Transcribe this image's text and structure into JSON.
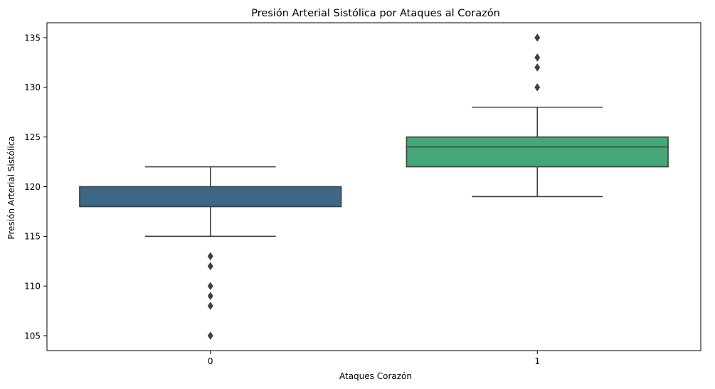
{
  "chart_data": {
    "type": "boxplot",
    "title": "Presión Arterial Sistólica por Ataques al Corazón",
    "xlabel": "Ataques Corazón",
    "ylabel": "Presión Arterial Sistólica",
    "categories": [
      "0",
      "1"
    ],
    "ylim": [
      103.5,
      136.5
    ],
    "yticks": [
      105,
      110,
      115,
      120,
      125,
      130,
      135
    ],
    "grid": false,
    "boxes": [
      {
        "category": "0",
        "whisker_low": 115,
        "q1": 118,
        "median": 118,
        "q3": 120,
        "whisker_high": 122,
        "outliers": [
          113,
          112,
          110,
          109,
          108,
          105
        ],
        "color": "#3d6786"
      },
      {
        "category": "1",
        "whisker_low": 119,
        "q1": 122,
        "median": 124,
        "q3": 125,
        "whisker_high": 128,
        "outliers": [
          130,
          132,
          133,
          135
        ],
        "color": "#44a778"
      }
    ]
  },
  "colors": {
    "line": "#3f3f3f",
    "frame": "#000000"
  }
}
